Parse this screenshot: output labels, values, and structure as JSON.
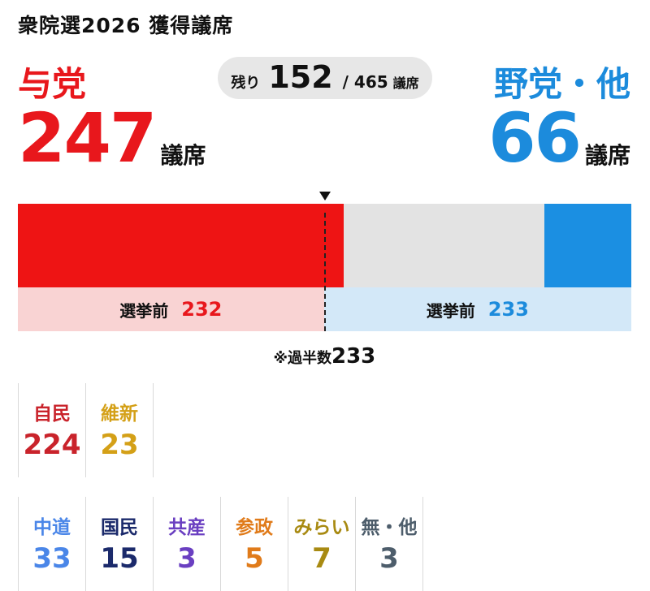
{
  "title": "衆院選2026 獲得議席",
  "ruling": {
    "label": "与党",
    "seats": "247",
    "unit": "議席",
    "color": "#e8171c"
  },
  "opposition": {
    "label": "野党・他",
    "seats": "66",
    "unit": "議席",
    "color": "#1c8bdc"
  },
  "remaining": {
    "label": "残り",
    "value": "152",
    "total": "/ 465",
    "unit": "議席"
  },
  "previous": {
    "label": "選挙前",
    "ruling": "232",
    "opposition": "233"
  },
  "majority": {
    "label": "※過半数",
    "value": "233"
  },
  "parties_row1": [
    {
      "name": "自民",
      "seats": "224",
      "color": "#c9232b"
    },
    {
      "name": "維新",
      "seats": "23",
      "color": "#d4a017"
    }
  ],
  "parties_row2": [
    {
      "name": "中道",
      "seats": "33",
      "color": "#4a86e8"
    },
    {
      "name": "国民",
      "seats": "15",
      "color": "#1b2a6b"
    },
    {
      "name": "共産",
      "seats": "3",
      "color": "#6a3fc1"
    },
    {
      "name": "参政",
      "seats": "5",
      "color": "#e07b1a"
    },
    {
      "name": "みらい",
      "seats": "7",
      "color": "#a88a12"
    },
    {
      "name": "無・他",
      "seats": "3",
      "color": "#4d5d6b"
    }
  ],
  "chart_data": {
    "type": "bar",
    "total": 465,
    "majority": 233,
    "series": [
      {
        "name": "与党",
        "value": 247,
        "previous": 232
      },
      {
        "name": "野党・他",
        "value": 66,
        "previous": 233
      }
    ],
    "remaining": 152
  }
}
